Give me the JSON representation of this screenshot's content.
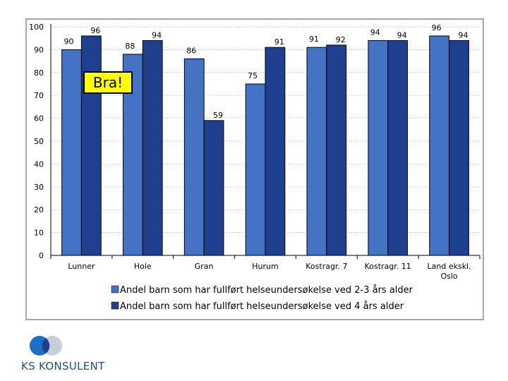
{
  "chart_data": {
    "type": "bar",
    "categories": [
      "Lunner",
      "Hole",
      "Gran",
      "Hurum",
      "Kostragr. 7",
      "Kostragr. 11",
      "Land ekskl. Oslo"
    ],
    "series": [
      {
        "name": "Andel barn som har fullført helseundersøkelse ved 2-3 års alder",
        "values": [
          90,
          88,
          86,
          75,
          91,
          94,
          96
        ]
      },
      {
        "name": "Andel barn som har fullført helseundersøkelse ved 4 års alder",
        "values": [
          96,
          94,
          59,
          91,
          92,
          94,
          94
        ]
      }
    ],
    "data_labels": {
      "series_0": [
        "90",
        "88",
        "86",
        "75",
        "91",
        "94",
        "96"
      ],
      "series_1": [
        "96",
        "94",
        "59",
        "91",
        "92",
        "94",
        "94"
      ]
    },
    "ylim": [
      0,
      100
    ],
    "yticks": [
      0,
      10,
      20,
      30,
      40,
      50,
      60,
      70,
      80,
      90,
      100
    ],
    "grid": true,
    "legend_position": "bottom",
    "colors": {
      "series_0": "#4472c4",
      "series_1": "#1f3f8f",
      "gridline": "#bfbfbf",
      "frame": "#a6a6a6"
    }
  },
  "annotation": {
    "text": "Bra!",
    "background": "#ffff00"
  },
  "logo": {
    "text": "KS KONSULENT",
    "colors": [
      "#1f6fc4",
      "#1f3f8f",
      "#c9cdd6"
    ]
  }
}
